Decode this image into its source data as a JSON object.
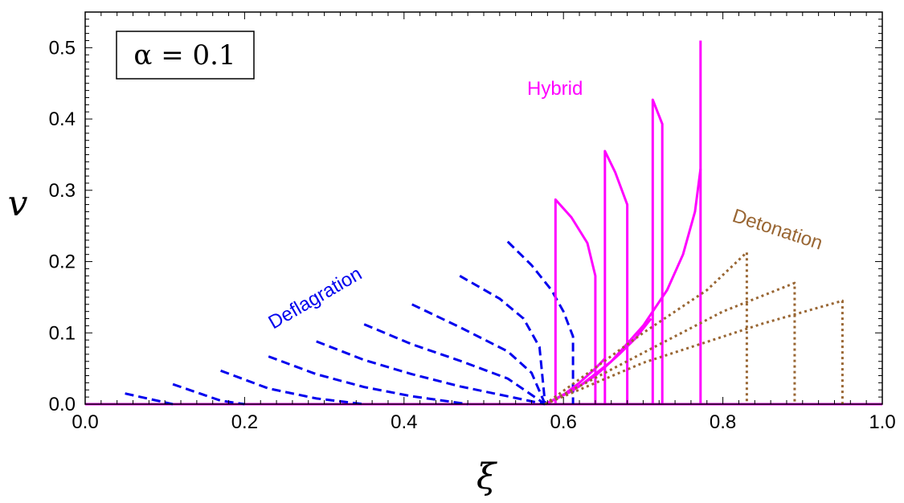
{
  "chart_data": {
    "type": "line",
    "xlabel": "ξ",
    "ylabel": "v",
    "xlim": [
      0.0,
      1.0
    ],
    "ylim": [
      0.0,
      0.55
    ],
    "x_ticks": [
      "0.0",
      "0.2",
      "0.4",
      "0.6",
      "0.8",
      "1.0"
    ],
    "y_ticks": [
      "0.0",
      "0.1",
      "0.2",
      "0.3",
      "0.4",
      "0.5"
    ],
    "grid": false,
    "legend_box": "α = 0.1",
    "annotations": [
      {
        "text": "Deflagration",
        "color": "#0000ee"
      },
      {
        "text": "Hybrid",
        "color": "#ff00ff"
      },
      {
        "text": "Detonation",
        "color": "#996633"
      }
    ],
    "colors": {
      "deflagration": "#0000ee",
      "hybrid": "#ff00ff",
      "detonation": "#996633"
    },
    "sound_speed_xi": 0.577,
    "series": [
      {
        "group": "deflagration",
        "style": "dashed",
        "points": [
          [
            0.05,
            0.015
          ],
          [
            0.11,
            0.0
          ]
        ]
      },
      {
        "group": "deflagration",
        "style": "dashed",
        "points": [
          [
            0.11,
            0.028
          ],
          [
            0.17,
            0.005
          ],
          [
            0.2,
            0.0
          ]
        ]
      },
      {
        "group": "deflagration",
        "style": "dashed",
        "points": [
          [
            0.17,
            0.047
          ],
          [
            0.23,
            0.022
          ],
          [
            0.29,
            0.008
          ],
          [
            0.35,
            0.0
          ]
        ]
      },
      {
        "group": "deflagration",
        "style": "dashed",
        "points": [
          [
            0.23,
            0.067
          ],
          [
            0.29,
            0.042
          ],
          [
            0.35,
            0.024
          ],
          [
            0.41,
            0.011
          ],
          [
            0.48,
            0.0
          ]
        ]
      },
      {
        "group": "deflagration",
        "style": "dashed",
        "points": [
          [
            0.29,
            0.088
          ],
          [
            0.35,
            0.062
          ],
          [
            0.41,
            0.042
          ],
          [
            0.47,
            0.025
          ],
          [
            0.53,
            0.011
          ],
          [
            0.577,
            0.0
          ]
        ]
      },
      {
        "group": "deflagration",
        "style": "dashed",
        "points": [
          [
            0.35,
            0.112
          ],
          [
            0.41,
            0.084
          ],
          [
            0.47,
            0.061
          ],
          [
            0.53,
            0.036
          ],
          [
            0.577,
            0.0
          ]
        ]
      },
      {
        "group": "deflagration",
        "style": "dashed",
        "points": [
          [
            0.41,
            0.14
          ],
          [
            0.47,
            0.108
          ],
          [
            0.53,
            0.074
          ],
          [
            0.56,
            0.044
          ],
          [
            0.577,
            0.0
          ]
        ]
      },
      {
        "group": "deflagration",
        "style": "dashed",
        "points": [
          [
            0.47,
            0.18
          ],
          [
            0.52,
            0.148
          ],
          [
            0.55,
            0.12
          ],
          [
            0.57,
            0.08
          ],
          [
            0.577,
            0.0
          ]
        ]
      },
      {
        "group": "deflagration",
        "style": "dashed",
        "points": [
          [
            0.53,
            0.228
          ],
          [
            0.56,
            0.195
          ],
          [
            0.585,
            0.16
          ],
          [
            0.6,
            0.13
          ],
          [
            0.612,
            0.095
          ],
          [
            0.612,
            0.0
          ]
        ]
      },
      {
        "group": "hybrid",
        "style": "solid",
        "points": [
          [
            0.59,
            0.0
          ],
          [
            0.59,
            0.287
          ],
          [
            0.61,
            0.262
          ],
          [
            0.63,
            0.226
          ],
          [
            0.64,
            0.18
          ],
          [
            0.64,
            0.0
          ]
        ]
      },
      {
        "group": "hybrid",
        "style": "solid",
        "points": [
          [
            0.577,
            0.0
          ],
          [
            0.6,
            0.013
          ],
          [
            0.62,
            0.03
          ],
          [
            0.64,
            0.05
          ],
          [
            0.652,
            0.064
          ]
        ]
      },
      {
        "group": "hybrid",
        "style": "solid",
        "points": [
          [
            0.652,
            0.0
          ],
          [
            0.652,
            0.355
          ],
          [
            0.665,
            0.325
          ],
          [
            0.68,
            0.28
          ],
          [
            0.68,
            0.0
          ]
        ]
      },
      {
        "group": "hybrid",
        "style": "solid",
        "points": [
          [
            0.577,
            0.0
          ],
          [
            0.61,
            0.018
          ],
          [
            0.64,
            0.04
          ],
          [
            0.67,
            0.07
          ],
          [
            0.69,
            0.092
          ],
          [
            0.71,
            0.12
          ]
        ]
      },
      {
        "group": "hybrid",
        "style": "solid",
        "points": [
          [
            0.712,
            0.0
          ],
          [
            0.712,
            0.427
          ],
          [
            0.724,
            0.393
          ],
          [
            0.724,
            0.0
          ]
        ]
      },
      {
        "group": "hybrid",
        "style": "solid",
        "points": [
          [
            0.577,
            0.0
          ],
          [
            0.62,
            0.025
          ],
          [
            0.66,
            0.06
          ],
          [
            0.7,
            0.11
          ],
          [
            0.73,
            0.16
          ],
          [
            0.75,
            0.21
          ],
          [
            0.765,
            0.27
          ],
          [
            0.772,
            0.33
          ]
        ]
      },
      {
        "group": "hybrid",
        "style": "solid",
        "points": [
          [
            0.772,
            0.0
          ],
          [
            0.772,
            0.51
          ]
        ]
      },
      {
        "group": "detonation",
        "style": "dotted",
        "points": [
          [
            0.577,
            0.0
          ],
          [
            0.7,
            0.1
          ],
          [
            0.78,
            0.16
          ],
          [
            0.83,
            0.213
          ],
          [
            0.83,
            0.0
          ]
        ]
      },
      {
        "group": "detonation",
        "style": "dotted",
        "points": [
          [
            0.577,
            0.0
          ],
          [
            0.7,
            0.072
          ],
          [
            0.8,
            0.13
          ],
          [
            0.89,
            0.17
          ],
          [
            0.89,
            0.0
          ]
        ]
      },
      {
        "group": "detonation",
        "style": "dotted",
        "points": [
          [
            0.577,
            0.0
          ],
          [
            0.7,
            0.058
          ],
          [
            0.85,
            0.113
          ],
          [
            0.95,
            0.145
          ],
          [
            0.95,
            0.0
          ]
        ]
      }
    ]
  }
}
